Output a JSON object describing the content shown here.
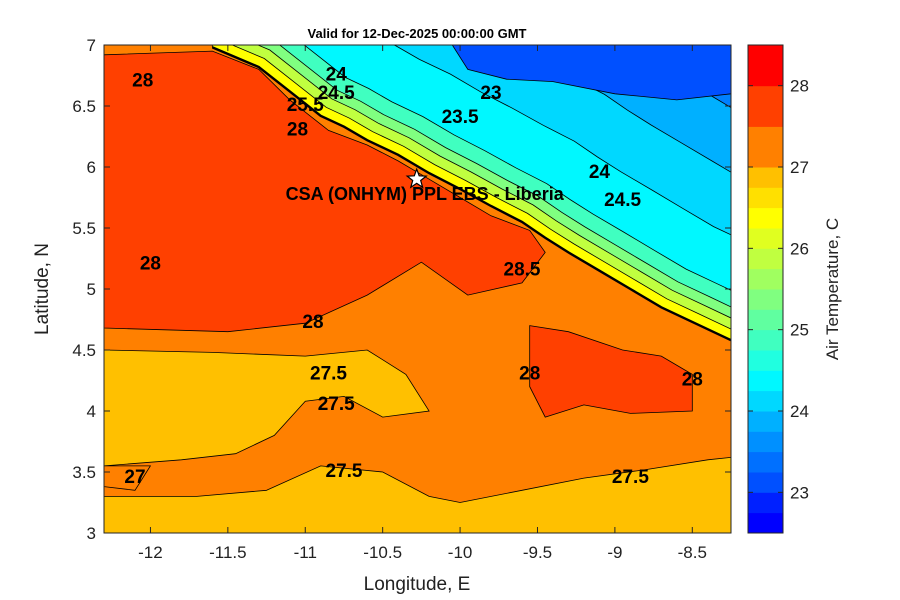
{
  "chart_data": {
    "type": "heatmap",
    "subtype": "filled-contour-map",
    "title": "Valid for 12-Dec-2025 00:00:00 GMT",
    "xlabel": "Longitude, E",
    "ylabel": "Latitude, N",
    "xlim": [
      -12.3,
      -8.25
    ],
    "ylim": [
      3,
      7
    ],
    "xticks": [
      -12,
      -11.5,
      -11,
      -10.5,
      -10,
      -9.5,
      -9,
      -8.5
    ],
    "yticks": [
      3,
      3.5,
      4,
      4.5,
      5,
      5.5,
      6,
      6.5,
      7
    ],
    "colorbar": {
      "label": "Air Temperature, C",
      "range": [
        22.5,
        28.5
      ],
      "ticks": [
        23,
        24,
        25,
        26,
        27,
        28
      ],
      "levels": [
        22.5,
        22.75,
        23,
        23.25,
        23.5,
        23.75,
        24,
        24.25,
        24.5,
        24.75,
        25,
        25.25,
        25.5,
        25.75,
        26,
        26.25,
        26.5,
        26.75,
        27,
        27.5,
        28,
        28.5
      ],
      "colors": [
        "#0000ff",
        "#0020ff",
        "#0050ff",
        "#0070ff",
        "#0090ff",
        "#00b0ff",
        "#00d8ff",
        "#00f8ff",
        "#20ffe0",
        "#40ffc0",
        "#60ffa0",
        "#80ff80",
        "#a0ff60",
        "#c0ff40",
        "#e0ff20",
        "#ffff00",
        "#ffe000",
        "#ffc000",
        "#ff8000",
        "#ff4000",
        "#ff0000"
      ]
    },
    "site": {
      "label": "CSA (ONHYM) PPL EBS  - Liberia",
      "lon": -10.28,
      "lat": 5.9,
      "marker": "star"
    },
    "contour_labels": [
      {
        "text": "23",
        "lon": -9.8,
        "lat": 6.6
      },
      {
        "text": "23.5",
        "lon": -10.0,
        "lat": 6.4
      },
      {
        "text": "24",
        "lon": -10.8,
        "lat": 6.75
      },
      {
        "text": "24",
        "lon": -9.1,
        "lat": 5.95
      },
      {
        "text": "24.5",
        "lon": -10.8,
        "lat": 6.6
      },
      {
        "text": "24.5",
        "lon": -8.95,
        "lat": 5.72
      },
      {
        "text": "25.5",
        "lon": -11.0,
        "lat": 6.5
      },
      {
        "text": "28",
        "lon": -12.05,
        "lat": 6.7
      },
      {
        "text": "28",
        "lon": -11.05,
        "lat": 6.3
      },
      {
        "text": "28",
        "lon": -12.0,
        "lat": 5.2
      },
      {
        "text": "28",
        "lon": -10.95,
        "lat": 4.72
      },
      {
        "text": "28",
        "lon": -9.55,
        "lat": 4.3
      },
      {
        "text": "28",
        "lon": -8.5,
        "lat": 4.25
      },
      {
        "text": "28.5",
        "lon": -9.6,
        "lat": 5.15
      },
      {
        "text": "27.5",
        "lon": -10.85,
        "lat": 4.3
      },
      {
        "text": "27.5",
        "lon": -10.8,
        "lat": 4.05
      },
      {
        "text": "27.5",
        "lon": -10.75,
        "lat": 3.5
      },
      {
        "text": "27.5",
        "lon": -8.9,
        "lat": 3.45
      },
      {
        "text": "27",
        "lon": -12.1,
        "lat": 3.45
      }
    ],
    "regions": [
      {
        "level": 28,
        "color": "#ff4000",
        "outline": [
          [
            -12.3,
            6.92
          ],
          [
            -11.6,
            6.95
          ],
          [
            -11.3,
            6.8
          ],
          [
            -11.1,
            6.55
          ],
          [
            -10.85,
            6.3
          ],
          [
            -10.6,
            6.18
          ],
          [
            -10.4,
            6.05
          ],
          [
            -10.2,
            5.9
          ],
          [
            -10.0,
            5.75
          ],
          [
            -9.8,
            5.6
          ],
          [
            -9.55,
            5.48
          ],
          [
            -9.45,
            5.3
          ],
          [
            -9.6,
            5.05
          ],
          [
            -9.95,
            4.95
          ],
          [
            -10.25,
            5.22
          ],
          [
            -10.6,
            4.95
          ],
          [
            -11.0,
            4.72
          ],
          [
            -11.5,
            4.65
          ],
          [
            -12.3,
            4.68
          ]
        ]
      },
      {
        "level": 28,
        "color": "#ff4000",
        "outline": [
          [
            -9.55,
            4.7
          ],
          [
            -9.3,
            4.65
          ],
          [
            -8.95,
            4.5
          ],
          [
            -8.7,
            4.45
          ],
          [
            -8.5,
            4.3
          ],
          [
            -8.5,
            4.0
          ],
          [
            -8.9,
            3.98
          ],
          [
            -9.2,
            4.05
          ],
          [
            -9.45,
            3.95
          ],
          [
            -9.55,
            4.2
          ]
        ]
      },
      {
        "level": 27.5,
        "color": "#ffc000",
        "outline": [
          [
            -12.3,
            4.5
          ],
          [
            -11.6,
            4.48
          ],
          [
            -11.0,
            4.45
          ],
          [
            -10.6,
            4.5
          ],
          [
            -10.35,
            4.3
          ],
          [
            -10.2,
            4.0
          ],
          [
            -10.5,
            3.95
          ],
          [
            -10.75,
            4.12
          ],
          [
            -11.0,
            4.08
          ],
          [
            -11.2,
            3.8
          ],
          [
            -11.45,
            3.65
          ],
          [
            -11.8,
            3.6
          ],
          [
            -12.3,
            3.55
          ]
        ]
      },
      {
        "level": 27.5,
        "color": "#ffc000",
        "outline": [
          [
            -11.25,
            3.35
          ],
          [
            -10.9,
            3.55
          ],
          [
            -10.5,
            3.5
          ],
          [
            -10.2,
            3.3
          ],
          [
            -10.0,
            3.25
          ],
          [
            -9.6,
            3.35
          ],
          [
            -9.2,
            3.45
          ],
          [
            -8.8,
            3.52
          ],
          [
            -8.4,
            3.6
          ],
          [
            -8.25,
            3.62
          ],
          [
            -8.25,
            3.0
          ],
          [
            -12.3,
            3.0
          ],
          [
            -12.3,
            3.3
          ],
          [
            -11.7,
            3.3
          ]
        ]
      },
      {
        "level": 27,
        "color": "#ff8000",
        "outline": [
          [
            -12.3,
            3.55
          ],
          [
            -12.0,
            3.55
          ],
          [
            -12.1,
            3.35
          ],
          [
            -12.3,
            3.38
          ]
        ]
      }
    ],
    "cold_bands": [
      {
        "level": 26.5,
        "color": "#ffff00",
        "offset": 0
      },
      {
        "level": 26,
        "color": "#c0ff40",
        "offset": 10
      },
      {
        "level": 25.5,
        "color": "#80ff80",
        "offset": 20
      },
      {
        "level": 25,
        "color": "#40ffc0",
        "offset": 30
      },
      {
        "level": 24.5,
        "color": "#00f8ff",
        "offset": 45
      },
      {
        "level": 24,
        "color": "#00d8ff",
        "offset": 95
      },
      {
        "level": 23.5,
        "color": "#00b0ff",
        "offset": 150
      },
      {
        "level": 23,
        "color": "#0080ff",
        "offset": 205
      },
      {
        "level": 22.75,
        "color": "#0050ff",
        "offset": 260
      }
    ],
    "coast": [
      [
        -11.6,
        6.98
      ],
      [
        -11.3,
        6.82
      ],
      [
        -11.1,
        6.62
      ],
      [
        -10.9,
        6.42
      ],
      [
        -10.75,
        6.33
      ],
      [
        -10.6,
        6.22
      ],
      [
        -10.4,
        6.1
      ],
      [
        -10.2,
        5.95
      ],
      [
        -10.0,
        5.82
      ],
      [
        -9.8,
        5.68
      ],
      [
        -9.6,
        5.55
      ],
      [
        -9.45,
        5.42
      ],
      [
        -9.3,
        5.3
      ],
      [
        -9.1,
        5.15
      ],
      [
        -8.9,
        5.0
      ],
      [
        -8.7,
        4.85
      ],
      [
        -8.5,
        4.73
      ],
      [
        -8.25,
        4.58
      ]
    ]
  }
}
